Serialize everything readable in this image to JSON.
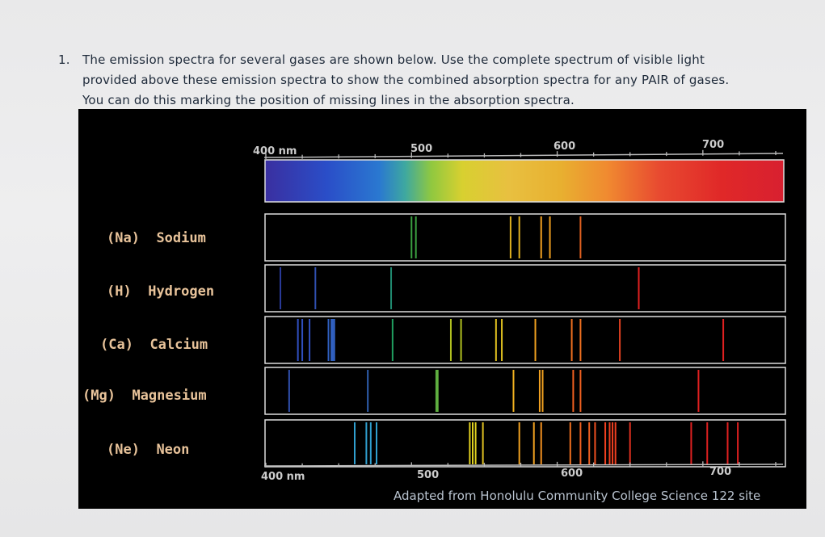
{
  "question": {
    "number": "1.",
    "line1": "The emission spectra for several gases are shown below.  Use the complete spectrum of visible light",
    "line2": "provided above these emission spectra to show the combined absorption spectra for any PAIR of gases.",
    "line3": "You can do this marking the position of missing lines in the absorption spectra."
  },
  "figure": {
    "top_axis": {
      "label_400": "400 nm",
      "label_500": "500",
      "label_600": "600",
      "label_700": "700"
    },
    "bottom_axis": {
      "label_400": "400 nm",
      "label_500": "500",
      "label_600": "600",
      "label_700": "700"
    },
    "credit": "Adapted from Honolulu Community College Science 122 site",
    "elements": [
      {
        "symbol": "(Na)",
        "name": "Sodium",
        "lines": [
          {
            "nm": 500,
            "c": "#3aa040"
          },
          {
            "nm": 503,
            "c": "#3aa040"
          },
          {
            "nm": 568,
            "c": "#e0b020"
          },
          {
            "nm": 574,
            "c": "#e0b020"
          },
          {
            "nm": 589,
            "c": "#f0a020"
          },
          {
            "nm": 595,
            "c": "#f0a020"
          },
          {
            "nm": 616,
            "c": "#e06020"
          }
        ]
      },
      {
        "symbol": "(H)",
        "name": "Hydrogen",
        "lines": [
          {
            "nm": 410,
            "c": "#2a3a9a"
          },
          {
            "nm": 434,
            "c": "#3050b0"
          },
          {
            "nm": 486,
            "c": "#208a70"
          },
          {
            "nm": 656,
            "c": "#e02020"
          }
        ]
      },
      {
        "symbol": "(Ca)",
        "name": "Calcium",
        "lines": [
          {
            "nm": 422,
            "c": "#3050c0"
          },
          {
            "nm": 425,
            "c": "#3050c0"
          },
          {
            "nm": 430,
            "c": "#3050c0"
          },
          {
            "nm": 443,
            "c": "#3060c0"
          },
          {
            "nm": 445,
            "c": "#3060c0"
          },
          {
            "nm": 446,
            "c": "#3060c0"
          },
          {
            "nm": 447,
            "c": "#3060c0"
          },
          {
            "nm": 487,
            "c": "#20a060"
          },
          {
            "nm": 527,
            "c": "#b0c020"
          },
          {
            "nm": 534,
            "c": "#b0c020"
          },
          {
            "nm": 558,
            "c": "#e0c020"
          },
          {
            "nm": 562,
            "c": "#e0c020"
          },
          {
            "nm": 585,
            "c": "#f0a020"
          },
          {
            "nm": 610,
            "c": "#f07020"
          },
          {
            "nm": 616,
            "c": "#f07020"
          },
          {
            "nm": 643,
            "c": "#e04020"
          },
          {
            "nm": 714,
            "c": "#e02020"
          }
        ]
      },
      {
        "symbol": "(Mg)",
        "name": "Magnesium",
        "lines": [
          {
            "nm": 416,
            "c": "#3050b0"
          },
          {
            "nm": 470,
            "c": "#3060b0"
          },
          {
            "nm": 517,
            "c": "#60b040"
          },
          {
            "nm": 518,
            "c": "#60b040"
          },
          {
            "nm": 570,
            "c": "#f0b020"
          },
          {
            "nm": 588,
            "c": "#f0a020"
          },
          {
            "nm": 590,
            "c": "#f0a020"
          },
          {
            "nm": 611,
            "c": "#f06020"
          },
          {
            "nm": 616,
            "c": "#f06020"
          },
          {
            "nm": 697,
            "c": "#e02020"
          }
        ]
      },
      {
        "symbol": "(Ne)",
        "name": "Neon",
        "lines": [
          {
            "nm": 461,
            "c": "#30a0d0"
          },
          {
            "nm": 469,
            "c": "#30a0d0"
          },
          {
            "nm": 472,
            "c": "#30a0d0"
          },
          {
            "nm": 476,
            "c": "#30a0d0"
          },
          {
            "nm": 540,
            "c": "#e0d020"
          },
          {
            "nm": 542,
            "c": "#e0d020"
          },
          {
            "nm": 544,
            "c": "#e0d020"
          },
          {
            "nm": 549,
            "c": "#e0c020"
          },
          {
            "nm": 574,
            "c": "#f0a020"
          },
          {
            "nm": 584,
            "c": "#f0a020"
          },
          {
            "nm": 589,
            "c": "#f09020"
          },
          {
            "nm": 609,
            "c": "#f07020"
          },
          {
            "nm": 616,
            "c": "#f06020"
          },
          {
            "nm": 622,
            "c": "#f06020"
          },
          {
            "nm": 626,
            "c": "#f05020"
          },
          {
            "nm": 633,
            "c": "#f04020"
          },
          {
            "nm": 636,
            "c": "#f04020"
          },
          {
            "nm": 638,
            "c": "#f04020"
          },
          {
            "nm": 640,
            "c": "#f04020"
          },
          {
            "nm": 650,
            "c": "#e03020"
          },
          {
            "nm": 692,
            "c": "#e02020"
          },
          {
            "nm": 703,
            "c": "#e02020"
          },
          {
            "nm": 717,
            "c": "#e02020"
          },
          {
            "nm": 724,
            "c": "#e02020"
          }
        ]
      }
    ]
  }
}
